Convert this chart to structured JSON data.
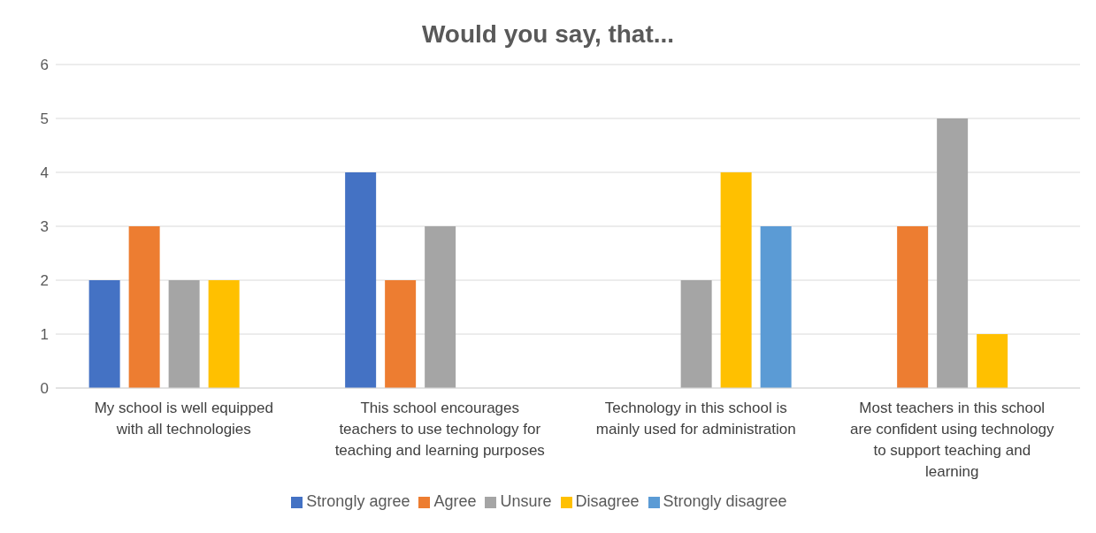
{
  "chart_data": {
    "type": "bar",
    "title": "Would you say, that...",
    "categories": [
      "My school is well equipped with all technologies",
      "This school encourages teachers to use technology for teaching and learning purposes",
      "Technology in this school is mainly used for administration",
      "Most teachers in this school are confident using technology to support teaching and learning"
    ],
    "series": [
      {
        "name": "Strongly agree",
        "color": "#4472c4",
        "values": [
          2,
          4,
          0,
          0
        ]
      },
      {
        "name": "Agree",
        "color": "#ed7d31",
        "values": [
          3,
          2,
          0,
          3
        ]
      },
      {
        "name": "Unsure",
        "color": "#a5a5a5",
        "values": [
          2,
          3,
          2,
          5
        ]
      },
      {
        "name": "Disagree",
        "color": "#ffc000",
        "values": [
          2,
          0,
          4,
          1
        ]
      },
      {
        "name": "Strongly disagree",
        "color": "#5b9bd5",
        "values": [
          0,
          0,
          3,
          0
        ]
      }
    ],
    "ylim": [
      0,
      6
    ],
    "yticks": [
      0,
      1,
      2,
      3,
      4,
      5,
      6
    ],
    "grid": "y",
    "legend": "bottom"
  }
}
